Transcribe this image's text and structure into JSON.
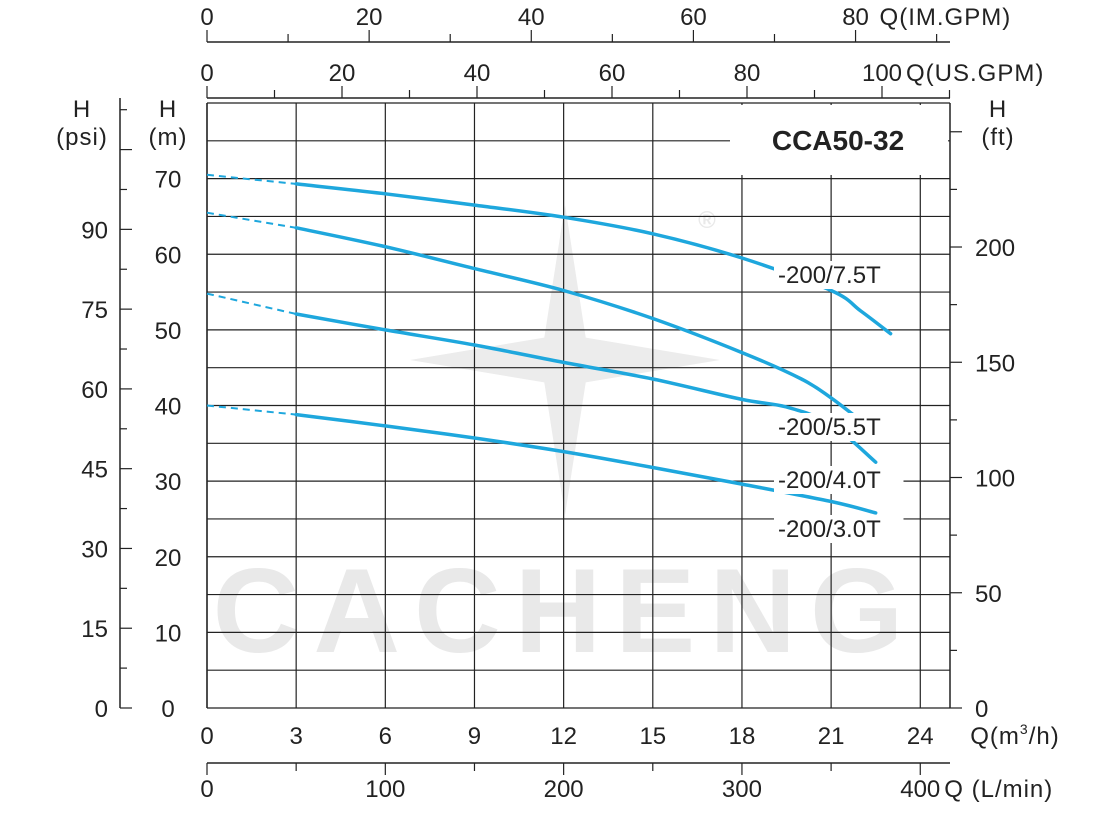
{
  "chart_data": {
    "type": "line",
    "model": "CCA50-32",
    "watermark": "CACHENG",
    "registered_mark": "®",
    "colors": {
      "curve": "#1ea7dd",
      "grid": "#222222",
      "watermark": "#e9e9e9"
    },
    "x_axis": {
      "label": "Q(m³/h)",
      "label_parts": {
        "main": "Q(m",
        "sup": "3",
        "tail": "/h)"
      },
      "range": [
        0,
        25
      ],
      "ticks": [
        0,
        3,
        6,
        9,
        12,
        15,
        18,
        21,
        24
      ],
      "minor_step": 1.5
    },
    "x_axis_lmin": {
      "label": "Q (L/min)",
      "ticks": [
        0,
        100,
        200,
        300,
        400
      ],
      "factor_per_m3h": 16.667
    },
    "x_axis_usgpm": {
      "label": "Q(US.GPM)",
      "ticks": [
        0,
        20,
        40,
        60,
        80,
        100
      ],
      "factor_per_m3h": 4.403
    },
    "x_axis_imgpm": {
      "label": "Q(IM.GPM)",
      "ticks": [
        0,
        20,
        40,
        60,
        80
      ],
      "factor_per_m3h": 3.666
    },
    "y_axis": {
      "label": "H",
      "unit": "(m)",
      "range": [
        0,
        80
      ],
      "ticks": [
        0,
        10,
        20,
        30,
        40,
        50,
        60,
        70
      ],
      "minor_step": 5
    },
    "y_axis_psi": {
      "label": "H",
      "unit": "(psi)",
      "ticks": [
        0,
        15,
        30,
        45,
        60,
        75,
        90
      ],
      "factor_per_m": 1.422
    },
    "y_axis_ft": {
      "label": "H",
      "unit": "(ft)",
      "ticks": [
        0,
        50,
        100,
        150,
        200
      ],
      "factor_per_m": 3.281
    },
    "grid": true,
    "series": [
      {
        "name": "-200/7.5T",
        "dashed_to_x": 3,
        "points": [
          [
            0,
            70.5
          ],
          [
            3,
            69.3
          ],
          [
            6,
            68
          ],
          [
            9,
            66.5
          ],
          [
            12,
            64.9
          ],
          [
            15,
            62.7
          ],
          [
            18,
            59.5
          ],
          [
            21,
            55.2
          ],
          [
            22,
            52.5
          ],
          [
            23,
            49.5
          ]
        ]
      },
      {
        "name": "-200/5.5T",
        "dashed_to_x": 3,
        "points": [
          [
            0,
            65.5
          ],
          [
            3,
            63.5
          ],
          [
            6,
            61
          ],
          [
            9,
            58.1
          ],
          [
            12,
            55.2
          ],
          [
            15,
            51.5
          ],
          [
            18,
            47
          ],
          [
            20,
            43.5
          ],
          [
            21,
            41
          ],
          [
            22,
            38
          ]
        ]
      },
      {
        "name": "-200/4.0T",
        "dashed_to_x": 3,
        "points": [
          [
            0,
            54.8
          ],
          [
            3,
            52.1
          ],
          [
            6,
            50
          ],
          [
            9,
            48
          ],
          [
            12,
            45.7
          ],
          [
            15,
            43.5
          ],
          [
            18,
            40.8
          ],
          [
            19.5,
            39.8
          ],
          [
            21,
            37.5
          ],
          [
            22.5,
            32.5
          ]
        ]
      },
      {
        "name": "-200/3.0T",
        "dashed_to_x": 3,
        "points": [
          [
            0,
            40
          ],
          [
            3,
            38.8
          ],
          [
            6,
            37.3
          ],
          [
            9,
            35.7
          ],
          [
            12,
            33.9
          ],
          [
            15,
            31.8
          ],
          [
            18,
            29.6
          ],
          [
            21,
            27.3
          ],
          [
            22.5,
            25.8
          ]
        ]
      }
    ]
  }
}
